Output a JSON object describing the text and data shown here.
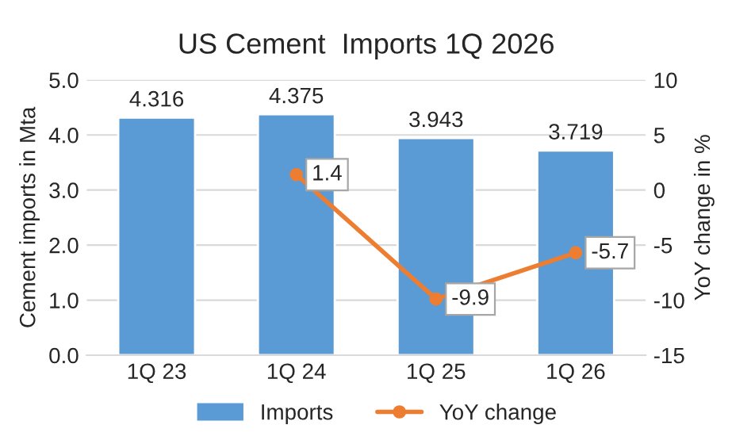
{
  "chart_data": {
    "type": "bar",
    "title": "US Cement  Imports 1Q 2026",
    "categories": [
      "1Q 23",
      "1Q 24",
      "1Q 25",
      "1Q 26"
    ],
    "series": [
      {
        "name": "Imports",
        "color": "#5b9bd5",
        "values": [
          4.316,
          4.375,
          3.943,
          3.719
        ]
      },
      {
        "name": "YoY change",
        "type": "line",
        "axis": "y2",
        "color": "#ed7d31",
        "values": [
          null,
          1.4,
          -9.9,
          -5.7
        ]
      }
    ],
    "ylabel": "Cement imports in Mta",
    "y2label": "YoY change in %",
    "ylim": [
      0,
      5
    ],
    "yticks": [
      {
        "value": 0,
        "label": "0.0"
      },
      {
        "value": 1,
        "label": "1.0"
      },
      {
        "value": 2,
        "label": "2.0"
      },
      {
        "value": 3,
        "label": "3.0"
      },
      {
        "value": 4,
        "label": "4.0"
      },
      {
        "value": 5,
        "label": "5.0"
      }
    ],
    "y2lim": [
      -15,
      10
    ],
    "y2ticks": [
      -15,
      -10,
      -5,
      0,
      5,
      10
    ],
    "grid": "y",
    "legend": "bottom",
    "marker": "circle",
    "data_labels": true
  }
}
